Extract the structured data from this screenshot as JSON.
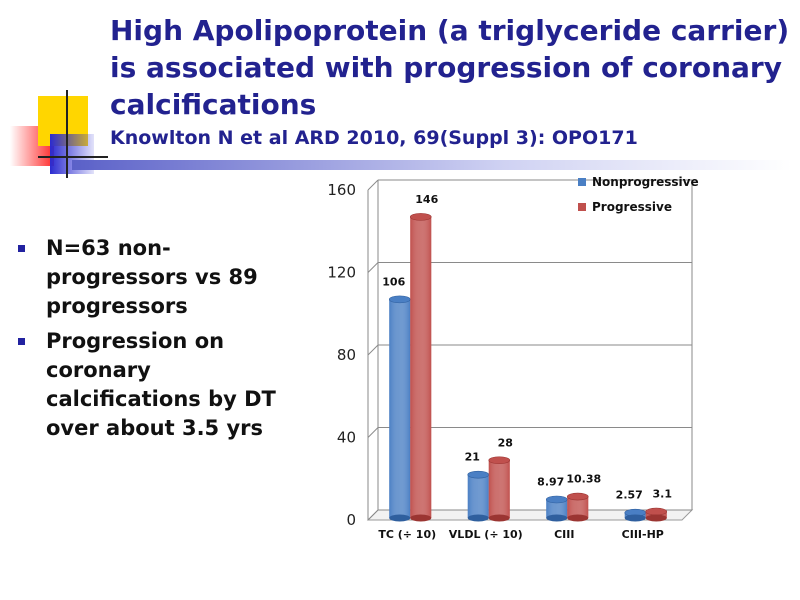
{
  "slide": {
    "title": "High Apolipoprotein (a triglyceride carrier) is associated with progression of coronary calcifications",
    "subtitle": "Knowlton N et al ARD 2010, 69(Suppl 3): OPO171",
    "bullets": [
      "N=63 non-progressors vs 89 progressors",
      "Progression on coronary calcifications by DT over about 3.5 yrs"
    ]
  },
  "chart_data": {
    "type": "bar",
    "categories": [
      "TC (÷ 10)",
      "VLDL (÷ 10)",
      "CIII",
      "CIII-HP"
    ],
    "series": [
      {
        "name": "Nonprogressive",
        "values": [
          106,
          21,
          8.97,
          2.57
        ],
        "labels": [
          "106",
          "21",
          "8.97",
          "2.57"
        ],
        "color": "#4a7fc4"
      },
      {
        "name": "Progressive",
        "values": [
          146,
          28,
          10.38,
          3.1
        ],
        "labels": [
          "146",
          "28",
          "10.38",
          "3.1"
        ],
        "color": "#c0504d"
      }
    ],
    "ylim": [
      0,
      160
    ],
    "yticks": [
      0,
      40,
      80,
      120,
      160
    ],
    "ytick_labels": [
      "0",
      "40",
      "80",
      "120",
      "160"
    ],
    "grid": true,
    "legend_position": "top-right",
    "title": "",
    "xlabel": "",
    "ylabel": ""
  }
}
